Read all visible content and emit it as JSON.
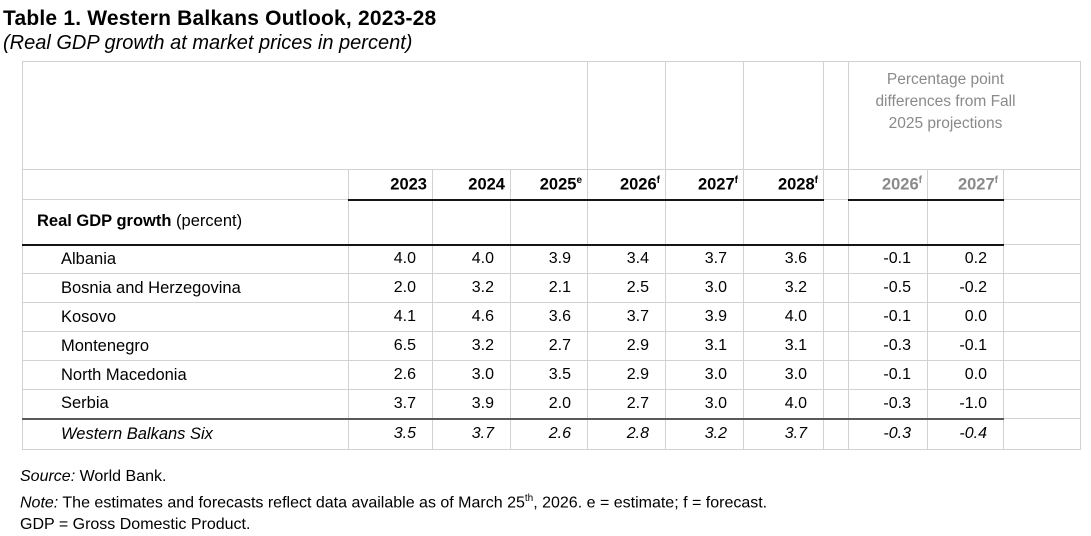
{
  "title": "Table 1. Western Balkans Outlook, 2023-28",
  "subtitle": "(Real GDP growth at market prices in percent)",
  "colors": {
    "header_gray": "#8a8a8a",
    "grid_line": "#d2d2d2",
    "dark_rule": "#5a5a5a",
    "black_rule": "#151515"
  },
  "table": {
    "diff_group_header": "Percentage point differences from Fall 2025 projections",
    "year_columns": [
      {
        "label": "2023",
        "sup": ""
      },
      {
        "label": "2024",
        "sup": ""
      },
      {
        "label": "2025",
        "sup": "e"
      },
      {
        "label": "2026",
        "sup": "f"
      },
      {
        "label": "2027",
        "sup": "f"
      },
      {
        "label": "2028",
        "sup": "f"
      }
    ],
    "diff_columns": [
      {
        "label": "2026",
        "sup": "f"
      },
      {
        "label": "2027",
        "sup": "f"
      }
    ],
    "section_header": {
      "bold": "Real GDP growth",
      "normal": " (percent)"
    },
    "rows": [
      {
        "name": "Albania",
        "italic": false,
        "values": [
          "4.0",
          "4.0",
          "3.9",
          "3.4",
          "3.7",
          "3.6"
        ],
        "diffs": [
          "-0.1",
          "0.2"
        ]
      },
      {
        "name": "Bosnia and Herzegovina",
        "italic": false,
        "values": [
          "2.0",
          "3.2",
          "2.1",
          "2.5",
          "3.0",
          "3.2"
        ],
        "diffs": [
          "-0.5",
          "-0.2"
        ]
      },
      {
        "name": "Kosovo",
        "italic": false,
        "values": [
          "4.1",
          "4.6",
          "3.6",
          "3.7",
          "3.9",
          "4.0"
        ],
        "diffs": [
          "-0.1",
          "0.0"
        ]
      },
      {
        "name": "Montenegro",
        "italic": false,
        "values": [
          "6.5",
          "3.2",
          "2.7",
          "2.9",
          "3.1",
          "3.1"
        ],
        "diffs": [
          "-0.3",
          "-0.1"
        ]
      },
      {
        "name": "North Macedonia",
        "italic": false,
        "values": [
          "2.6",
          "3.0",
          "3.5",
          "2.9",
          "3.0",
          "3.0"
        ],
        "diffs": [
          "-0.1",
          "0.0"
        ]
      },
      {
        "name": "Serbia",
        "italic": false,
        "values": [
          "3.7",
          "3.9",
          "2.0",
          "2.7",
          "3.0",
          "4.0"
        ],
        "diffs": [
          "-0.3",
          "-1.0"
        ]
      },
      {
        "name": "Western Balkans Six",
        "italic": true,
        "values": [
          "3.5",
          "3.7",
          "2.6",
          "2.8",
          "3.2",
          "3.7"
        ],
        "diffs": [
          "-0.3",
          "-0.4"
        ]
      }
    ]
  },
  "footer": {
    "source_label": "Source:",
    "source_text": " World Bank.",
    "note_label": "Note:",
    "note_before_sup": " The estimates and forecasts reflect data available as of March 25",
    "note_sup": "th",
    "note_after_sup": ", 2026. e = estimate; f = forecast.",
    "gdp_line": "GDP = Gross Domestic Product."
  }
}
